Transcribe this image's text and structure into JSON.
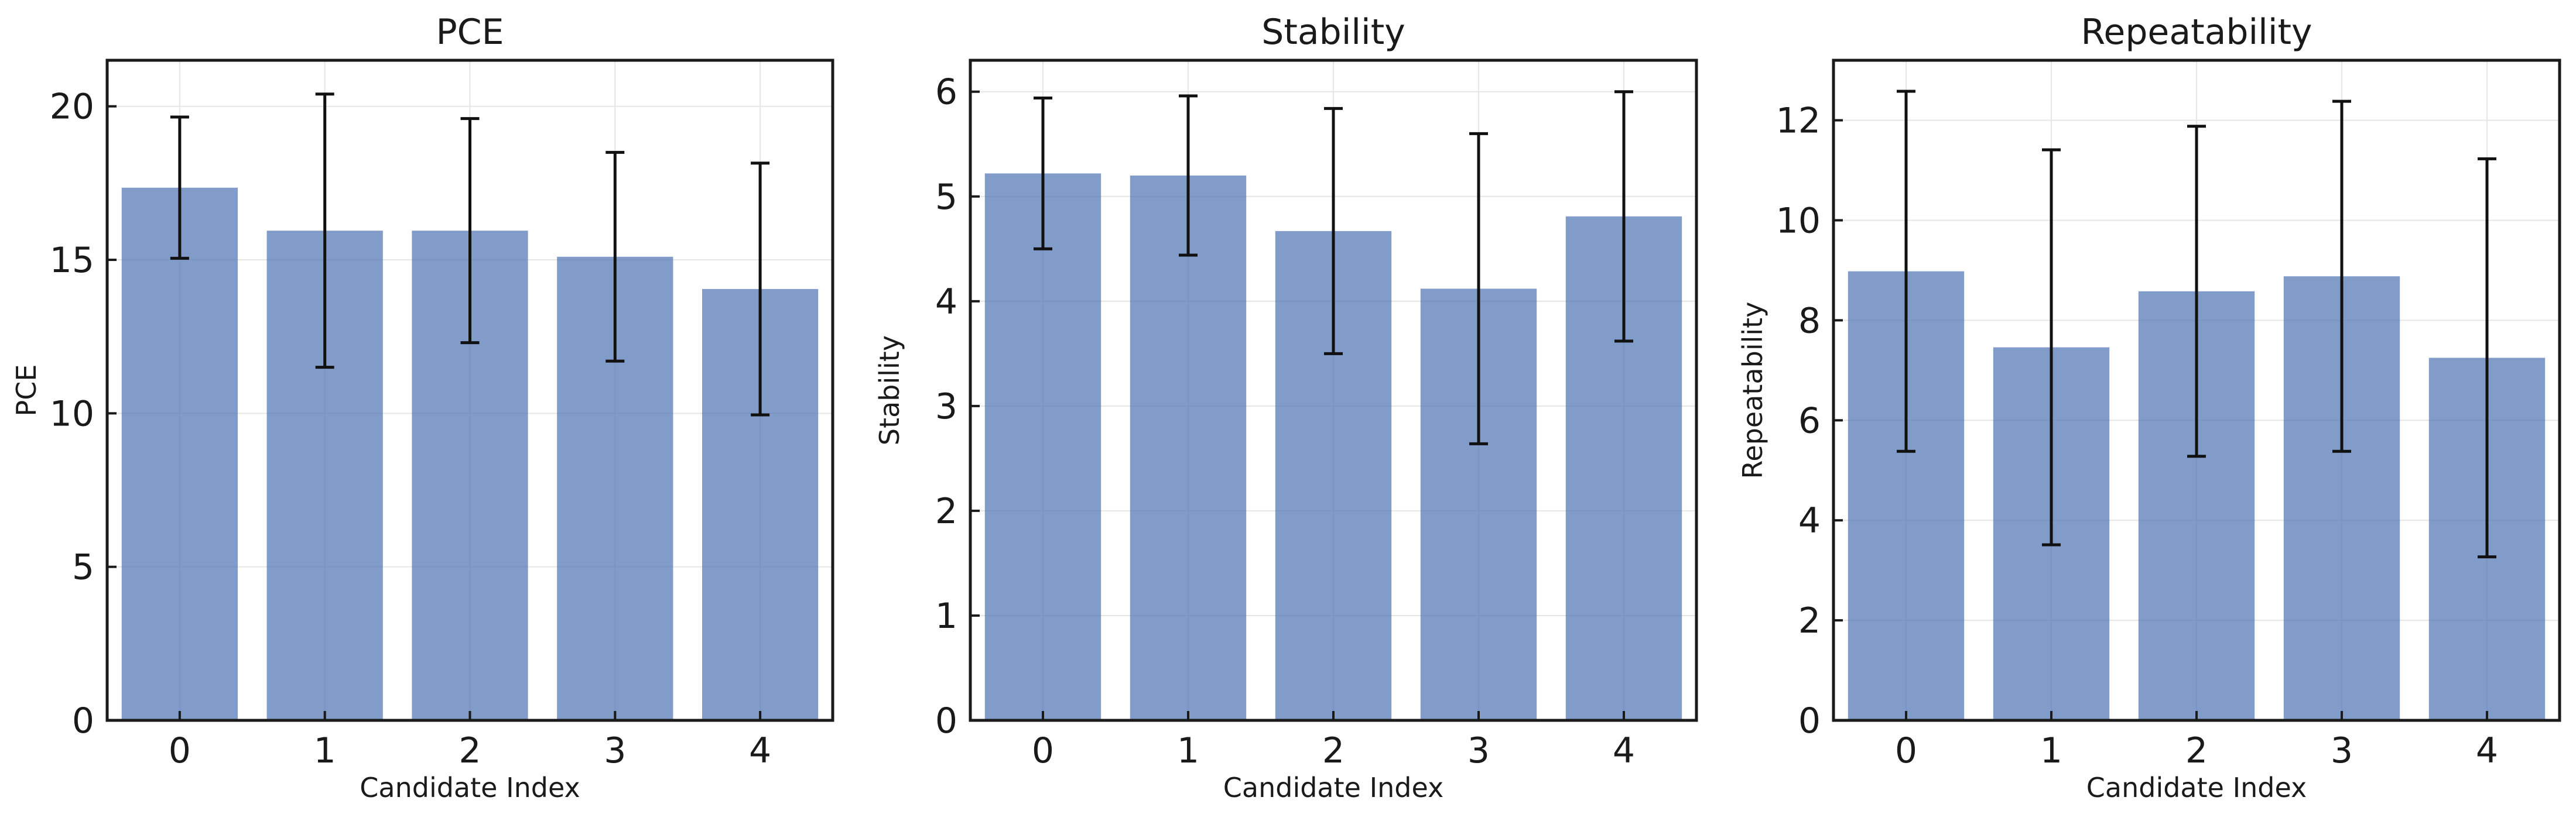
{
  "style": {
    "bar_color": "#4c72b0",
    "bar_opacity": 0.7,
    "error_color": "#111111"
  },
  "chart_data": [
    {
      "type": "bar",
      "title": "PCE",
      "xlabel": "Candidate Index",
      "ylabel": "PCE",
      "categories": [
        "0",
        "1",
        "2",
        "3",
        "4"
      ],
      "values": [
        17.35,
        15.95,
        15.95,
        15.1,
        14.05
      ],
      "errors": [
        2.3,
        4.45,
        3.65,
        3.4,
        4.1
      ],
      "ylim": [
        0,
        21.5
      ],
      "yticks": [
        0,
        5,
        10,
        15,
        20
      ],
      "grid": true,
      "legend": "none"
    },
    {
      "type": "bar",
      "title": "Stability",
      "xlabel": "Candidate Index",
      "ylabel": "Stability",
      "categories": [
        "0",
        "1",
        "2",
        "3",
        "4"
      ],
      "values": [
        5.22,
        5.2,
        4.67,
        4.12,
        4.81
      ],
      "errors": [
        0.72,
        0.76,
        1.17,
        1.48,
        1.19
      ],
      "ylim": [
        0,
        6.3
      ],
      "yticks": [
        0,
        1,
        2,
        3,
        4,
        5,
        6
      ],
      "grid": true,
      "legend": "none"
    },
    {
      "type": "bar",
      "title": "Repeatability",
      "xlabel": "Candidate Index",
      "ylabel": "Repeatability",
      "categories": [
        "0",
        "1",
        "2",
        "3",
        "4"
      ],
      "values": [
        8.98,
        7.46,
        8.58,
        8.88,
        7.25
      ],
      "errors": [
        3.6,
        3.95,
        3.3,
        3.5,
        3.98
      ],
      "ylim": [
        0,
        13.2
      ],
      "yticks": [
        0,
        2,
        4,
        6,
        8,
        10,
        12
      ],
      "grid": true,
      "legend": "none"
    }
  ]
}
